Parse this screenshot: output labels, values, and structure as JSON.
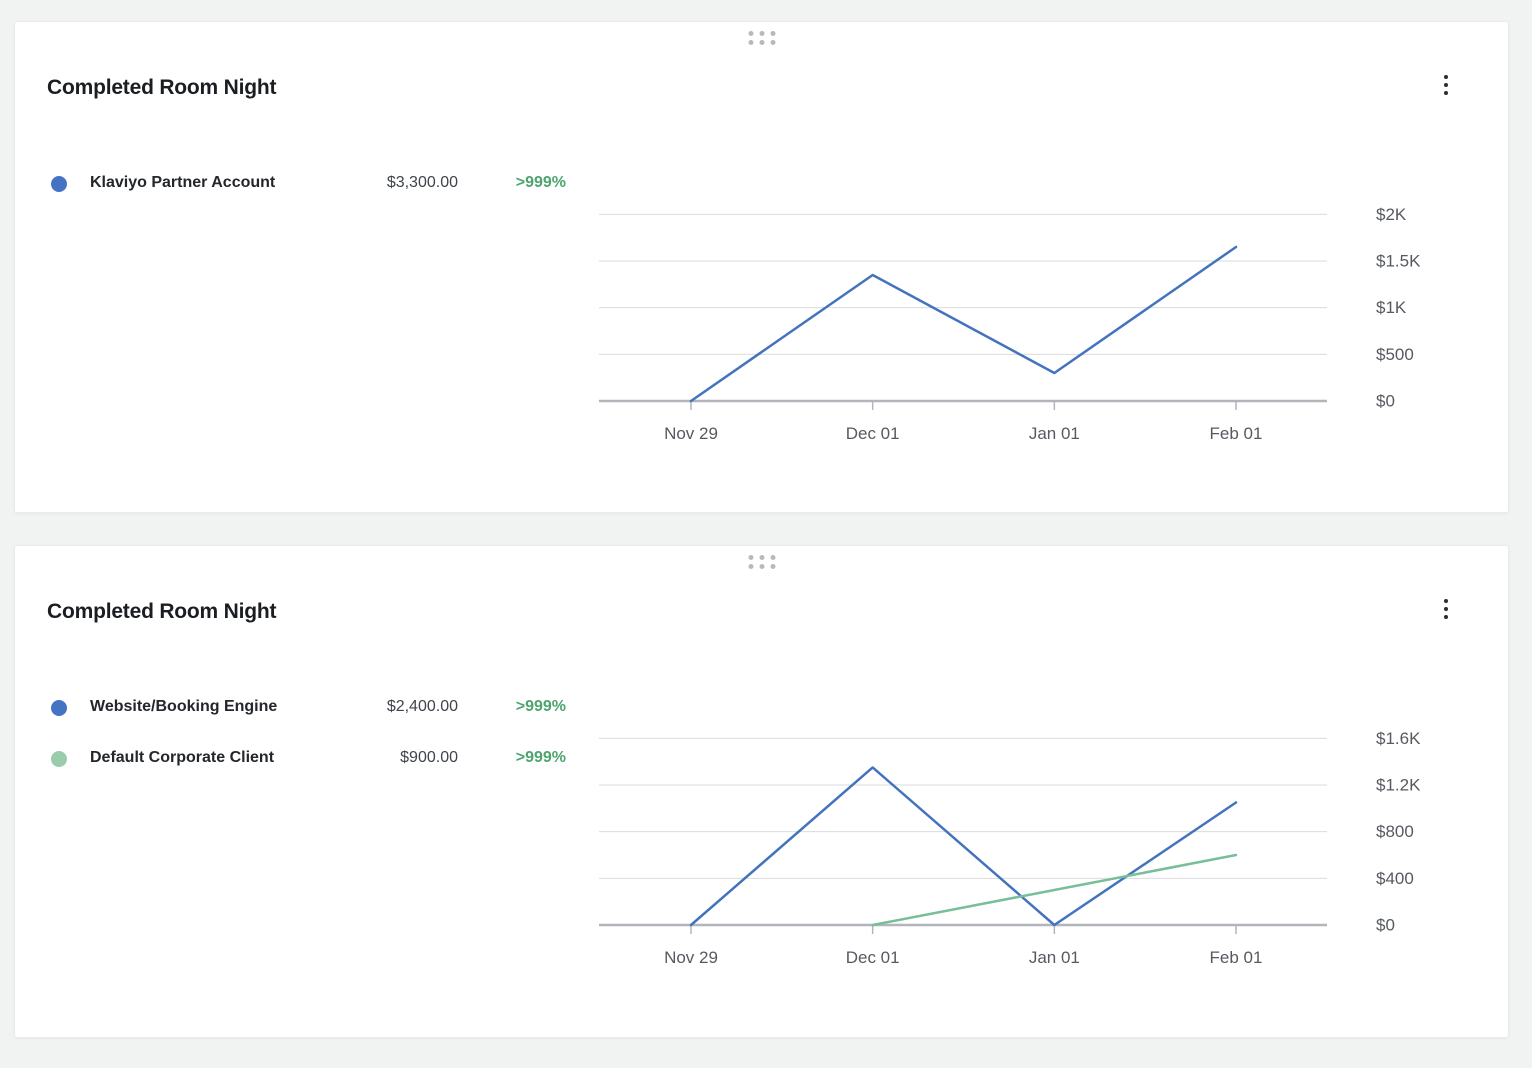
{
  "page": {
    "background_color": "#f1f2f2"
  },
  "colors": {
    "blue_series": "#4473be",
    "green_series": "#76bf97",
    "green_legend_dot": "#98ccad",
    "positive_change_text": "#4ea46e",
    "gridline": "#dadcde",
    "baseline": "#b2b5b9"
  },
  "cards": [
    {
      "title": "Completed Room Night",
      "drag_handle_icon": "drag-handle-dots",
      "menu_icon": "kebab-menu",
      "legend": [
        {
          "label": "Klaviyo Partner Account",
          "value": "$3,300.00",
          "change": ">999%",
          "dot_color": "#4473c4"
        }
      ],
      "chart_data": {
        "type": "line",
        "x": [
          "Nov 29",
          "Dec 01",
          "Jan 01",
          "Feb 01"
        ],
        "series": [
          {
            "name": "Klaviyo Partner Account",
            "color": "#4473be",
            "values": [
              0,
              1350,
              300,
              1650
            ]
          }
        ],
        "ylim": [
          0,
          2000
        ],
        "yticks": [
          {
            "value": 0,
            "label": "$0"
          },
          {
            "value": 500,
            "label": "$500"
          },
          {
            "value": 1000,
            "label": "$1K"
          },
          {
            "value": 1500,
            "label": "$1.5K"
          },
          {
            "value": 2000,
            "label": "$2K"
          }
        ],
        "grid": true,
        "y_axis_position": "right",
        "legend_position": "left"
      }
    },
    {
      "title": "Completed Room Night",
      "drag_handle_icon": "drag-handle-dots",
      "menu_icon": "kebab-menu",
      "legend": [
        {
          "label": "Website/Booking Engine",
          "value": "$2,400.00",
          "change": ">999%",
          "dot_color": "#4473c4"
        },
        {
          "label": "Default Corporate Client",
          "value": "$900.00",
          "change": ">999%",
          "dot_color": "#98ccad"
        }
      ],
      "chart_data": {
        "type": "line",
        "x": [
          "Nov 29",
          "Dec 01",
          "Jan 01",
          "Feb 01"
        ],
        "series": [
          {
            "name": "Website/Booking Engine",
            "color": "#4473be",
            "values": [
              0,
              1350,
              0,
              1050
            ]
          },
          {
            "name": "Default Corporate Client",
            "color": "#76bf97",
            "values": [
              null,
              0,
              300,
              600
            ]
          }
        ],
        "ylim": [
          0,
          1600
        ],
        "yticks": [
          {
            "value": 0,
            "label": "$0"
          },
          {
            "value": 400,
            "label": "$400"
          },
          {
            "value": 800,
            "label": "$800"
          },
          {
            "value": 1200,
            "label": "$1.2K"
          },
          {
            "value": 1600,
            "label": "$1.6K"
          }
        ],
        "grid": true,
        "y_axis_position": "right",
        "legend_position": "left"
      }
    }
  ]
}
